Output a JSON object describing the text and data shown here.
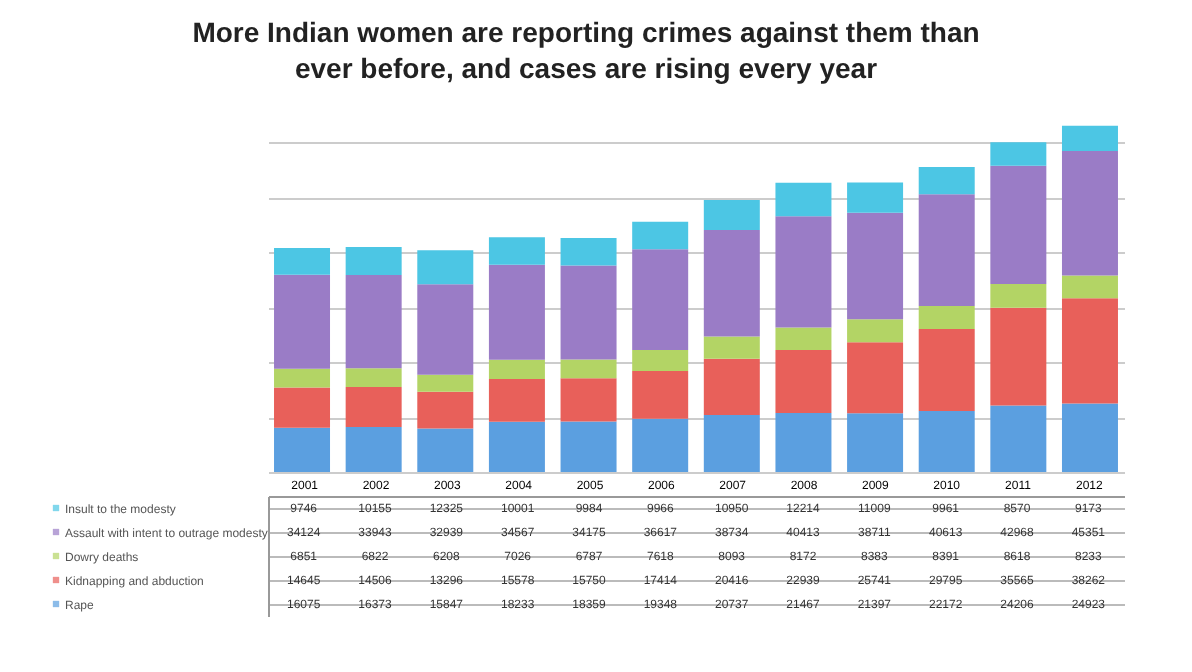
{
  "chart_data": {
    "type": "bar",
    "title": "More Indian women are reporting crimes against them than\never before, and cases are rising every year",
    "stacked": true,
    "data_labels": true,
    "grid": "y",
    "legend": "bottom",
    "categories": [
      "2001",
      "2002",
      "2003",
      "2004",
      "2005",
      "2006",
      "2007",
      "2008",
      "2009",
      "2010",
      "2011",
      "2012"
    ],
    "ylim": [
      0,
      128000
    ],
    "yticks": [
      {
        "value": 0,
        "label": null
      },
      {
        "value": 20000,
        "label": null
      },
      {
        "value": 40000,
        "label": null
      },
      {
        "value": 60000,
        "label": null
      },
      {
        "value": 80000,
        "label": null
      },
      {
        "value": 100000,
        "label": null
      },
      {
        "value": 120000,
        "label": null
      }
    ],
    "series": [
      {
        "name": "Rape",
        "color": "#5b9fe0",
        "values": [
          16075,
          16373,
          15847,
          18233,
          18359,
          19348,
          20737,
          21467,
          21397,
          22172,
          24206,
          24923
        ]
      },
      {
        "name": "Kidnapping and abduction",
        "color": "#e8605a",
        "values": [
          14645,
          14506,
          13296,
          15578,
          15750,
          17414,
          20416,
          22939,
          25741,
          29795,
          35565,
          38262
        ]
      },
      {
        "name": "Dowry deaths",
        "color": "#b3d465",
        "values": [
          6851,
          6822,
          6208,
          7026,
          6787,
          7618,
          8093,
          8172,
          8383,
          8391,
          8618,
          8233
        ]
      },
      {
        "name": "Assault with intent to outrage modesty",
        "color": "#9a7cc6",
        "values": [
          34124,
          33943,
          32939,
          34567,
          34175,
          36617,
          38734,
          40413,
          38711,
          40613,
          42968,
          45351
        ]
      },
      {
        "name": "Insult to the modesty",
        "color": "#4cc6e4",
        "values": [
          9746,
          10155,
          12325,
          10001,
          9984,
          9966,
          10950,
          12214,
          11009,
          9961,
          8570,
          9173
        ]
      }
    ]
  }
}
